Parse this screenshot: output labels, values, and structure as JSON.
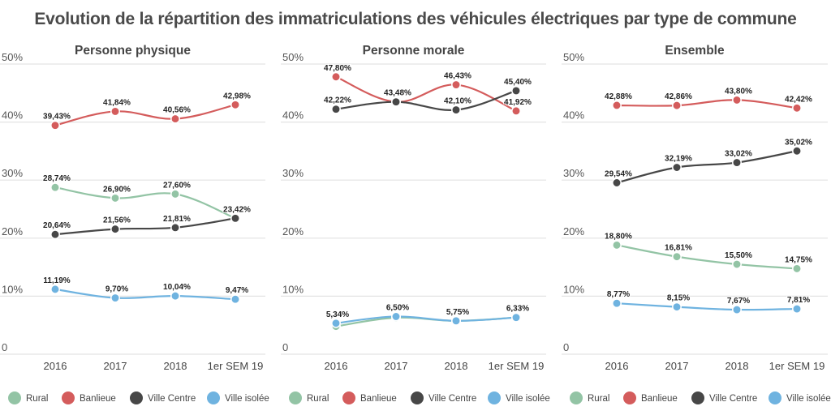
{
  "title": "Evolution de la répartition des immatriculations des véhicules électriques par type de commune",
  "colors": {
    "Rural": "#93c4a5",
    "Banlieue": "#d45c5c",
    "Ville Centre": "#474747",
    "Ville isolée": "#6fb3e0"
  },
  "chart_data": [
    {
      "type": "line",
      "title": "Personne physique",
      "categories": [
        "2016",
        "2017",
        "2018",
        "1er SEM 19"
      ],
      "yticks": [
        "0",
        "10%",
        "20%",
        "30%",
        "40%",
        "50%"
      ],
      "ylim": [
        0,
        50
      ],
      "grid": true,
      "legend": "bottom",
      "series": [
        {
          "name": "Rural",
          "values": [
            28.74,
            26.9,
            27.6,
            23.42
          ],
          "labels": [
            "28,74%",
            "26,90%",
            "27,60%",
            null
          ]
        },
        {
          "name": "Banlieue",
          "values": [
            39.43,
            41.84,
            40.56,
            42.98
          ],
          "labels": [
            "39,43%",
            "41,84%",
            "40,56%",
            "42,98%"
          ]
        },
        {
          "name": "Ville Centre",
          "values": [
            20.64,
            21.56,
            21.81,
            23.42
          ],
          "labels": [
            "20,64%",
            "21,56%",
            "21,81%",
            "23,42%"
          ]
        },
        {
          "name": "Ville isolée",
          "values": [
            11.19,
            9.7,
            10.04,
            9.47
          ],
          "labels": [
            "11,19%",
            "9,70%",
            "10,04%",
            "9,47%"
          ]
        }
      ]
    },
    {
      "type": "line",
      "title": "Personne morale",
      "categories": [
        "2016",
        "2017",
        "2018",
        "1er SEM 19"
      ],
      "yticks": [
        "0",
        "10%",
        "20%",
        "30%",
        "40%",
        "50%"
      ],
      "ylim": [
        0,
        50
      ],
      "grid": true,
      "legend": "bottom",
      "series": [
        {
          "name": "Rural",
          "values": [
            4.8,
            6.3,
            5.75,
            6.33
          ],
          "labels": [
            null,
            null,
            null,
            null
          ]
        },
        {
          "name": "Banlieue",
          "values": [
            47.8,
            43.48,
            46.43,
            41.92
          ],
          "labels": [
            "47,80%",
            null,
            "46,43%",
            "41,92%"
          ]
        },
        {
          "name": "Ville Centre",
          "values": [
            42.22,
            43.48,
            42.1,
            45.4
          ],
          "labels": [
            "42,22%",
            "43,48%",
            "42,10%",
            "45,40%"
          ]
        },
        {
          "name": "Ville isolée",
          "values": [
            5.34,
            6.5,
            5.75,
            6.33
          ],
          "labels": [
            "5,34%",
            "6,50%",
            "5,75%",
            "6,33%"
          ]
        }
      ]
    },
    {
      "type": "line",
      "title": "Ensemble",
      "categories": [
        "2016",
        "2017",
        "2018",
        "1er SEM 19"
      ],
      "yticks": [
        "0",
        "10%",
        "20%",
        "30%",
        "40%",
        "50%"
      ],
      "ylim": [
        0,
        50
      ],
      "grid": true,
      "legend": "bottom",
      "series": [
        {
          "name": "Rural",
          "values": [
            18.8,
            16.81,
            15.5,
            14.75
          ],
          "labels": [
            "18,80%",
            "16,81%",
            "15,50%",
            "14,75%"
          ]
        },
        {
          "name": "Banlieue",
          "values": [
            42.88,
            42.86,
            43.8,
            42.42
          ],
          "labels": [
            "42,88%",
            "42,86%",
            "43,80%",
            "42,42%"
          ]
        },
        {
          "name": "Ville Centre",
          "values": [
            29.54,
            32.19,
            33.02,
            35.02
          ],
          "labels": [
            "29,54%",
            "32,19%",
            "33,02%",
            "35,02%"
          ]
        },
        {
          "name": "Ville isolée",
          "values": [
            8.77,
            8.15,
            7.67,
            7.81
          ],
          "labels": [
            "8,77%",
            "8,15%",
            "7,67%",
            "7,81%"
          ]
        }
      ]
    }
  ]
}
